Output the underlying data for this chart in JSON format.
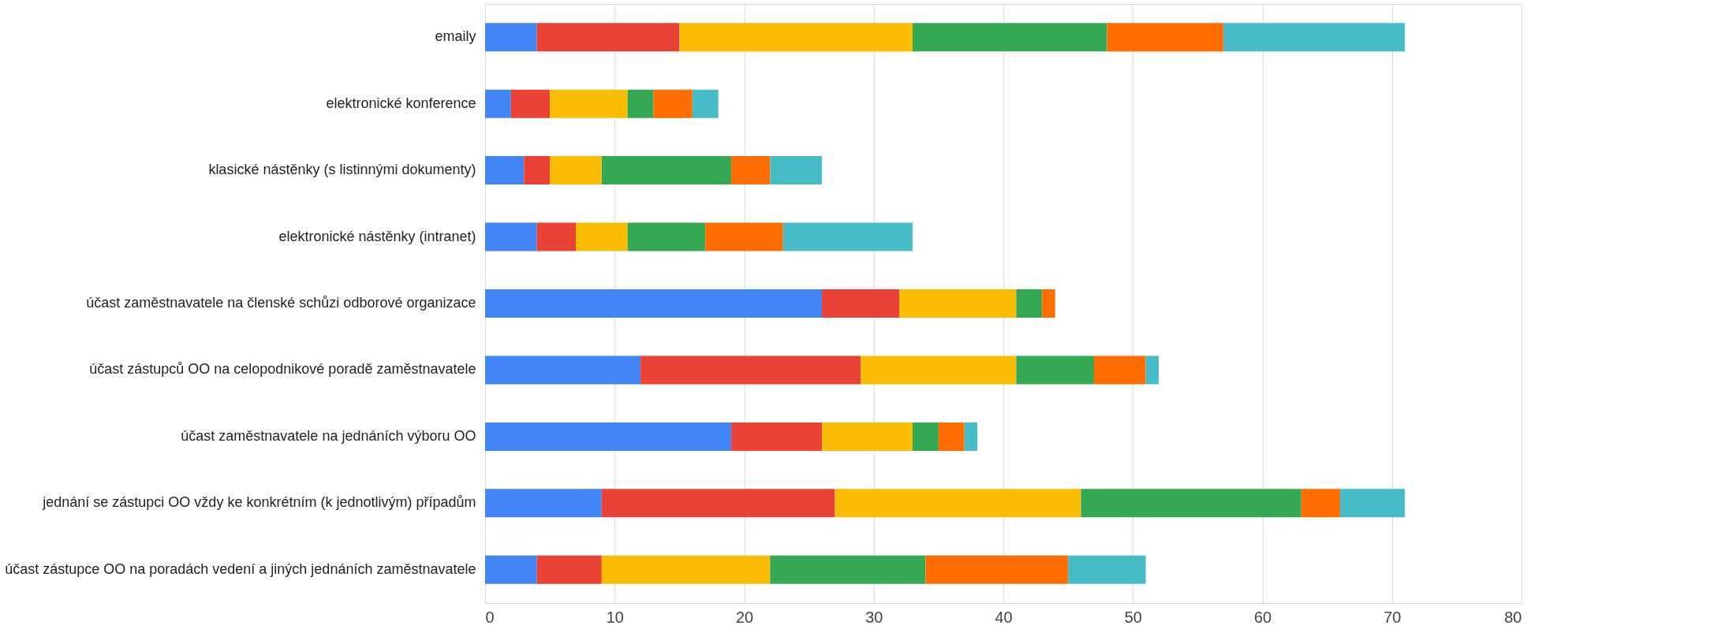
{
  "chart_data": {
    "type": "bar",
    "orientation": "horizontal",
    "stacked": true,
    "categories": [
      "emaily",
      "elektronické konference",
      "klasické nástěnky (s listinnými dokumenty)",
      "elektronické nástěnky (intranet)",
      "účast zaměstnavatele na členské schůzi odborové organizace",
      "účast zástupců OO na celopodnikové poradě zaměstnavatele",
      "účast zaměstnavatele na jednáních výboru OO",
      "jednání se zástupci OO vždy ke konkrétním (k jednotlivým) případům",
      "účast zástupce OO na poradách vedení a jiných jednáních zaměstnavatele"
    ],
    "series": [
      {
        "color": "#4285f4",
        "values": [
          4,
          2,
          3,
          4,
          26,
          12,
          19,
          9,
          4
        ]
      },
      {
        "color": "#ea4335",
        "values": [
          11,
          3,
          2,
          3,
          6,
          17,
          7,
          18,
          5
        ]
      },
      {
        "color": "#fbbc04",
        "values": [
          18,
          6,
          4,
          4,
          9,
          12,
          7,
          19,
          13
        ]
      },
      {
        "color": "#34a853",
        "values": [
          15,
          2,
          10,
          6,
          2,
          6,
          2,
          17,
          12
        ]
      },
      {
        "color": "#ff6d01",
        "values": [
          9,
          3,
          3,
          6,
          1,
          4,
          2,
          3,
          11
        ]
      },
      {
        "color": "#46bdc6",
        "values": [
          14,
          2,
          4,
          10,
          null,
          1,
          1,
          5,
          6
        ]
      }
    ],
    "xlim": [
      0,
      80
    ],
    "xticks": [
      0,
      10,
      20,
      30,
      40,
      50,
      60,
      70,
      80
    ],
    "grid": "x",
    "legend": false
  }
}
